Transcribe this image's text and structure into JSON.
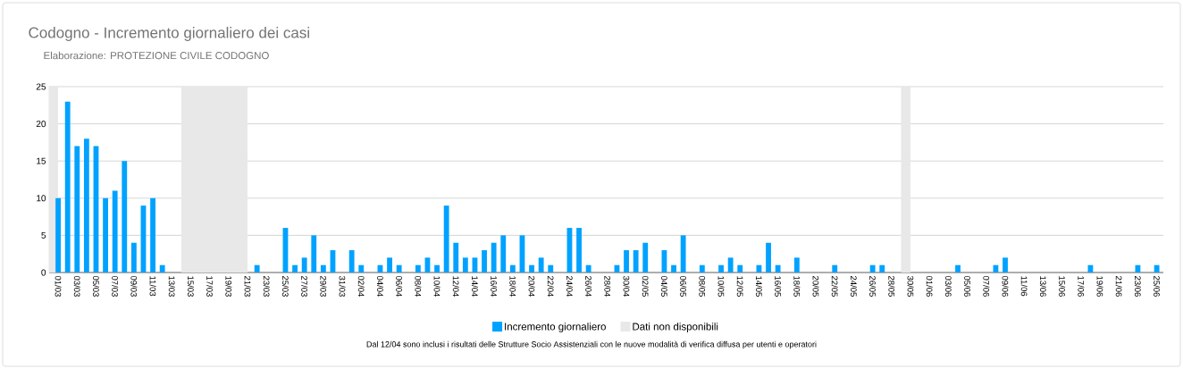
{
  "chart_data": {
    "type": "bar",
    "title": "Codogno - Incremento giornaliero dei casi",
    "subtitle": "Elaborazione:  PROTEZIONE CIVILE CODOGNO",
    "categories": [
      "01/03",
      null,
      "03/03",
      null,
      "05/03",
      null,
      "07/03",
      null,
      "09/03",
      null,
      "11/03",
      null,
      "13/03",
      null,
      "15/03",
      null,
      "17/03",
      null,
      "19/03",
      null,
      "21/03",
      null,
      "23/03",
      null,
      "25/03",
      null,
      "27/03",
      null,
      "29/03",
      null,
      "31/03",
      null,
      "02/04",
      null,
      "04/04",
      null,
      "06/04",
      null,
      "08/04",
      null,
      "10/04",
      null,
      "12/04",
      null,
      "14/04",
      null,
      "16/04",
      null,
      "18/04",
      null,
      "20/04",
      null,
      "22/04",
      null,
      "24/04",
      null,
      "26/04",
      null,
      "28/04",
      null,
      "30/04",
      null,
      "02/05",
      null,
      "04/05",
      null,
      "06/05",
      null,
      "08/05",
      null,
      "10/05",
      null,
      "12/05",
      null,
      "14/05",
      null,
      "16/05",
      null,
      "18/05",
      null,
      "20/05",
      null,
      "22/05",
      null,
      "24/05",
      null,
      "26/05",
      null,
      "28/05",
      null,
      "30/05",
      null,
      "01/06",
      null,
      "03/06",
      null,
      "05/06",
      null,
      "07/06",
      null,
      "09/06",
      null,
      "11/06",
      null,
      "13/06",
      null,
      "15/06",
      null,
      "17/06",
      null,
      "19/06",
      null,
      "21/06",
      null,
      "23/06",
      null,
      "25/06"
    ],
    "series": [
      {
        "name": "Incremento giornaliero",
        "color": "#00a2ff",
        "values": [
          10,
          23,
          17,
          18,
          17,
          10,
          11,
          15,
          4,
          9,
          10,
          1,
          0,
          0,
          0,
          0,
          0,
          0,
          0,
          0,
          0,
          1,
          0,
          0,
          6,
          1,
          2,
          5,
          1,
          3,
          0,
          3,
          1,
          0,
          1,
          2,
          1,
          0,
          1,
          2,
          1,
          9,
          4,
          2,
          2,
          3,
          4,
          5,
          1,
          5,
          1,
          2,
          1,
          0,
          6,
          6,
          1,
          0,
          0,
          1,
          3,
          3,
          4,
          0,
          3,
          1,
          5,
          0,
          1,
          0,
          1,
          2,
          1,
          0,
          1,
          4,
          1,
          0,
          2,
          0,
          0,
          0,
          1,
          0,
          0,
          0,
          1,
          1,
          0,
          0,
          0,
          0,
          0,
          0,
          0,
          1,
          0,
          0,
          0,
          1,
          2,
          0,
          0,
          0,
          0,
          0,
          0,
          0,
          0,
          1,
          0,
          0,
          0,
          0,
          1,
          0,
          1
        ]
      }
    ],
    "bands": [
      {
        "axis": "x",
        "from": "01/03",
        "to": "01/03",
        "label": "Dati non disponibili",
        "color": "#e8e8e8"
      },
      {
        "axis": "x",
        "from": "15/03",
        "to": "21/03",
        "color": "#e8e8e8"
      },
      {
        "axis": "x",
        "from": "30/05",
        "to": "30/05",
        "color": "#e8e8e8"
      }
    ],
    "ylim": [
      0,
      25
    ],
    "yticks": [
      0,
      5,
      10,
      15,
      20,
      25
    ],
    "grid": "y",
    "legend": "bottom",
    "annotations": [
      "Dal 12/04 sono inclusi i risultati delle Strutture Socio Assistenziali con le nuove modalità di verifica diffusa per utenti e operatori"
    ]
  }
}
